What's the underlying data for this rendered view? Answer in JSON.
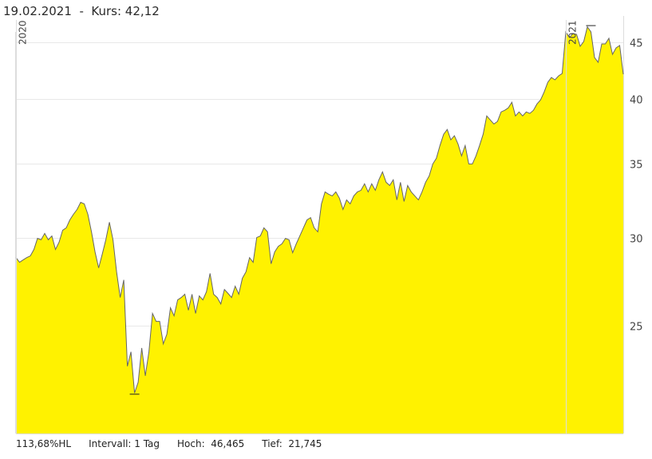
{
  "header": {
    "date": "19.02.2021",
    "separator": "-",
    "price_label": "Kurs: 42,12"
  },
  "footer": {
    "hl": "113,68%HL",
    "interval": "Intervall: 1 Tag",
    "high": "Hoch:  46,465",
    "low": "Tief:  21,745"
  },
  "chart_data": {
    "type": "area",
    "title": "",
    "xlabel": "",
    "ylabel": "",
    "y_scale": "log",
    "ylim": [
      20,
      47.5
    ],
    "y_ticks": [
      {
        "value": 25,
        "label": "25"
      },
      {
        "value": 30,
        "label": "30"
      },
      {
        "value": 35,
        "label": "35"
      },
      {
        "value": 40,
        "label": "40"
      },
      {
        "value": 45,
        "label": "45"
      }
    ],
    "y_axis_position": "right",
    "grid": true,
    "year_markers": [
      {
        "label": "2020",
        "index": 0
      },
      {
        "label": "2021",
        "index": 153
      }
    ],
    "high_marker": {
      "value": 46.47,
      "index": 160
    },
    "low_marker": {
      "value": 21.75,
      "index": 33
    },
    "colors": {
      "fill": "#fff200",
      "line": "#666666",
      "grid": "#e8e8e8"
    },
    "values": [
      28.8,
      28.52,
      28.66,
      28.8,
      28.9,
      29.29,
      29.97,
      29.88,
      30.28,
      29.88,
      30.12,
      29.29,
      29.73,
      30.48,
      30.63,
      31.14,
      31.5,
      31.82,
      32.3,
      32.19,
      31.5,
      30.38,
      29.14,
      28.19,
      29.0,
      29.88,
      30.99,
      29.88,
      27.96,
      26.51,
      27.5,
      22.99,
      23.69,
      21.75,
      22.24,
      23.88,
      22.54,
      23.69,
      25.65,
      25.23,
      25.23,
      24.08,
      24.57,
      25.95,
      25.52,
      26.38,
      26.51,
      26.69,
      25.82,
      26.69,
      25.65,
      26.6,
      26.38,
      26.83,
      27.87,
      26.69,
      26.51,
      26.16,
      26.96,
      26.74,
      26.51,
      27.14,
      26.69,
      27.59,
      27.96,
      28.8,
      28.52,
      30.02,
      30.12,
      30.63,
      30.38,
      28.43,
      29.14,
      29.48,
      29.63,
      29.97,
      29.88,
      29.09,
      29.63,
      30.12,
      30.63,
      31.14,
      31.29,
      30.63,
      30.38,
      32.19,
      33.0,
      32.84,
      32.73,
      33.0,
      32.57,
      31.82,
      32.46,
      32.19,
      32.73,
      33.0,
      33.11,
      33.56,
      33.0,
      33.56,
      33.11,
      33.84,
      34.4,
      33.67,
      33.44,
      33.84,
      32.46,
      33.67,
      32.35,
      33.44,
      33.0,
      32.73,
      32.46,
      33.0,
      33.67,
      34.11,
      34.97,
      35.38,
      36.33,
      37.19,
      37.56,
      36.76,
      37.07,
      36.45,
      35.56,
      36.33,
      34.97,
      34.97,
      35.56,
      36.33,
      37.19,
      38.63,
      38.31,
      37.99,
      38.19,
      38.95,
      39.08,
      39.28,
      39.74,
      38.63,
      38.95,
      38.63,
      38.95,
      38.83,
      39.08,
      39.6,
      39.94,
      40.6,
      41.42,
      41.83,
      41.63,
      41.97,
      42.18,
      45.98,
      45.45,
      45.83,
      45.75,
      44.63,
      45.08,
      46.47,
      45.98,
      43.6,
      43.17,
      44.85,
      44.85,
      45.38,
      43.89,
      44.48,
      44.7,
      42.12
    ]
  }
}
